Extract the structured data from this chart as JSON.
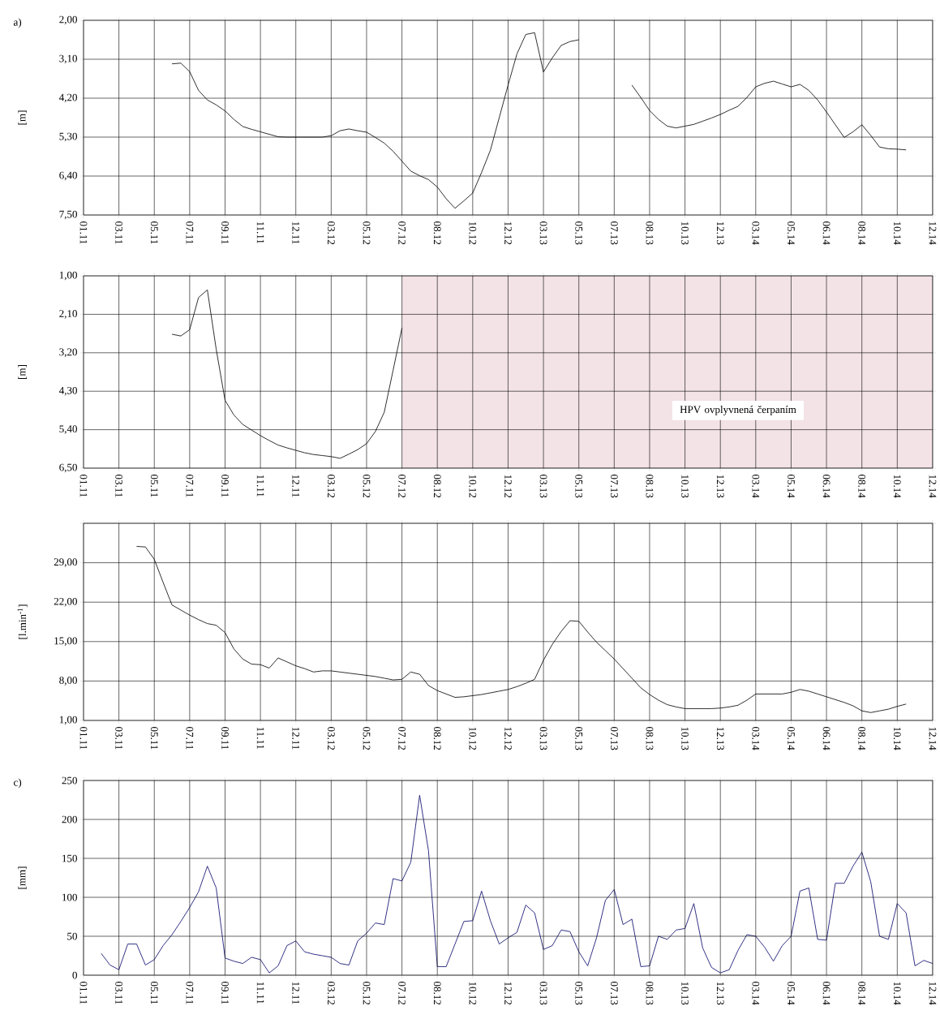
{
  "chart_data": [
    {
      "type": "line",
      "ylabel": "[m]",
      "annotations": [
        "a)"
      ],
      "grid": true,
      "ylim": [
        7.5,
        2.0
      ],
      "yticks": [
        {
          "value": 2.0,
          "label": "2,00"
        },
        {
          "value": 3.1,
          "label": "3,10"
        },
        {
          "value": 4.2,
          "label": "4,20"
        },
        {
          "value": 5.3,
          "label": "5,30"
        },
        {
          "value": 6.4,
          "label": "6,40"
        },
        {
          "value": 7.5,
          "label": "7,50"
        }
      ],
      "categories": [
        "01.11",
        null,
        null,
        null,
        "03.11",
        null,
        null,
        null,
        "05.11",
        null,
        null,
        null,
        "07.11",
        null,
        null,
        null,
        "09.11",
        null,
        null,
        null,
        "11.11",
        null,
        null,
        null,
        "12.11",
        null,
        null,
        null,
        "03.12",
        null,
        null,
        null,
        "05.12",
        null,
        null,
        null,
        "07.12",
        null,
        null,
        null,
        "08.12",
        null,
        null,
        null,
        "10.12",
        null,
        null,
        null,
        "12.12",
        null,
        null,
        null,
        "03.13",
        null,
        null,
        null,
        "05.13",
        null,
        null,
        null,
        "07.13",
        null,
        null,
        null,
        "08.13",
        null,
        null,
        null,
        "10.13",
        null,
        null,
        null,
        "12.13",
        null,
        null,
        null,
        "03.14",
        null,
        null,
        null,
        "05.14",
        null,
        null,
        null,
        "06.14",
        null,
        null,
        null,
        "08.14",
        null,
        null,
        null,
        "10.14",
        null,
        null,
        null,
        "12.14"
      ],
      "series": [
        {
          "color": "#1a1a1a",
          "values": [
            null,
            null,
            null,
            null,
            null,
            null,
            null,
            null,
            null,
            null,
            3.23,
            3.21,
            3.45,
            3.98,
            4.25,
            4.39,
            4.56,
            4.8,
            5.0,
            5.08,
            5.15,
            5.22,
            5.29,
            5.3,
            5.3,
            5.3,
            5.3,
            5.3,
            5.26,
            5.12,
            5.07,
            5.12,
            5.16,
            5.31,
            5.47,
            5.7,
            5.98,
            6.26,
            6.39,
            6.5,
            6.71,
            7.04,
            7.31,
            7.1,
            6.88,
            6.3,
            5.67,
            4.75,
            3.83,
            2.95,
            2.4,
            2.35,
            3.46,
            3.06,
            2.71,
            2.6,
            2.55,
            null,
            null,
            null,
            null,
            null,
            3.83,
            4.18,
            4.55,
            4.8,
            4.99,
            5.04,
            4.99,
            4.94,
            4.85,
            4.76,
            4.66,
            4.54,
            4.43,
            4.18,
            3.88,
            3.78,
            3.72,
            3.8,
            3.88,
            3.81,
            3.98,
            4.25,
            4.59,
            4.95,
            5.31,
            5.15,
            4.95,
            5.25,
            5.58,
            5.63,
            5.64,
            5.66,
            null,
            null,
            null
          ]
        }
      ]
    },
    {
      "type": "line",
      "ylabel": "[m]",
      "grid": true,
      "ylim": [
        6.5,
        1.0
      ],
      "yticks": [
        {
          "value": 1.0,
          "label": "1,00"
        },
        {
          "value": 2.1,
          "label": "2,10"
        },
        {
          "value": 3.2,
          "label": "3,20"
        },
        {
          "value": 4.3,
          "label": "4,30"
        },
        {
          "value": 5.4,
          "label": "5,40"
        },
        {
          "value": 6.5,
          "label": "6,50"
        }
      ],
      "categories": [
        "01.11",
        null,
        null,
        null,
        "03.11",
        null,
        null,
        null,
        "05.11",
        null,
        null,
        null,
        "07.11",
        null,
        null,
        null,
        "09.11",
        null,
        null,
        null,
        "11.11",
        null,
        null,
        null,
        "12.11",
        null,
        null,
        null,
        "03.12",
        null,
        null,
        null,
        "05.12",
        null,
        null,
        null,
        "07.12",
        null,
        null,
        null,
        "08.12",
        null,
        null,
        null,
        "10.12",
        null,
        null,
        null,
        "12.12",
        null,
        null,
        null,
        "03.13",
        null,
        null,
        null,
        "05.13",
        null,
        null,
        null,
        "07.13",
        null,
        null,
        null,
        "08.13",
        null,
        null,
        null,
        "10.13",
        null,
        null,
        null,
        "12.13",
        null,
        null,
        null,
        "03.14",
        null,
        null,
        null,
        "05.14",
        null,
        null,
        null,
        "06.14",
        null,
        null,
        null,
        "08.14",
        null,
        null,
        null,
        "10.14",
        null,
        null,
        null,
        "12.14"
      ],
      "bands": [
        {
          "axis": "x",
          "from": "07.12",
          "to": "12.14",
          "label": "HPV ovplyvnená čerpaním",
          "color": "#f3e3e6"
        }
      ],
      "series": [
        {
          "color": "#1a1a1a",
          "values": [
            null,
            null,
            null,
            null,
            null,
            null,
            null,
            null,
            null,
            null,
            2.67,
            2.72,
            2.54,
            1.62,
            1.4,
            3.1,
            4.56,
            4.98,
            5.25,
            5.41,
            5.57,
            5.71,
            5.84,
            5.92,
            5.99,
            6.06,
            6.11,
            6.14,
            6.17,
            6.22,
            6.1,
            5.97,
            5.8,
            5.45,
            4.9,
            3.7,
            2.49,
            null,
            null,
            null,
            null,
            null,
            null,
            null,
            null,
            null,
            null,
            null,
            null,
            null,
            null,
            null,
            null,
            null,
            null,
            null,
            null,
            null,
            null,
            null,
            null,
            null,
            null,
            null,
            null,
            null,
            null,
            null,
            null,
            null,
            null,
            null,
            null,
            null,
            null,
            null,
            null,
            null,
            null,
            null,
            null,
            null,
            null,
            null,
            null,
            null,
            null,
            null,
            null,
            null,
            null,
            null,
            null,
            null,
            null,
            null,
            null
          ]
        }
      ]
    },
    {
      "type": "line",
      "ylabel": "[l.min$^{-1}$]",
      "grid": true,
      "ylim": [
        1,
        36
      ],
      "yticks": [
        {
          "value": 1,
          "label": "1,00"
        },
        {
          "value": 8,
          "label": "8,00"
        },
        {
          "value": 15,
          "label": "15,00"
        },
        {
          "value": 22,
          "label": "22,00"
        },
        {
          "value": 29,
          "label": "29,00"
        },
        {
          "value": 36,
          "label": null
        }
      ],
      "categories": [
        "01.11",
        null,
        null,
        null,
        "03.11",
        null,
        null,
        null,
        "05.11",
        null,
        null,
        null,
        "07.11",
        null,
        null,
        null,
        "09.11",
        null,
        null,
        null,
        "11.11",
        null,
        null,
        null,
        "12.11",
        null,
        null,
        null,
        "03.12",
        null,
        null,
        null,
        "05.12",
        null,
        null,
        null,
        "07.12",
        null,
        null,
        null,
        "08.12",
        null,
        null,
        null,
        "10.12",
        null,
        null,
        null,
        "12.12",
        null,
        null,
        null,
        "03.13",
        null,
        null,
        null,
        "05.13",
        null,
        null,
        null,
        "07.13",
        null,
        null,
        null,
        "08.13",
        null,
        null,
        null,
        "10.13",
        null,
        null,
        null,
        "12.13",
        null,
        null,
        null,
        "03.14",
        null,
        null,
        null,
        "05.14",
        null,
        null,
        null,
        "06.14",
        null,
        null,
        null,
        "08.14",
        null,
        null,
        null,
        "10.14",
        null,
        null,
        null,
        "12.14"
      ],
      "series": [
        {
          "color": "#1a1a1a",
          "values": [
            null,
            null,
            null,
            null,
            null,
            null,
            31.9,
            31.8,
            29.6,
            25.5,
            21.5,
            20.6,
            19.7,
            18.9,
            18.2,
            17.9,
            16.6,
            13.7,
            11.9,
            11.0,
            10.9,
            10.3,
            12.1,
            11.4,
            10.7,
            10.2,
            9.6,
            9.8,
            9.8,
            9.6,
            9.4,
            9.2,
            9.0,
            8.8,
            8.5,
            8.2,
            8.3,
            9.6,
            9.2,
            7.2,
            6.3,
            5.7,
            5.1,
            5.2,
            5.4,
            5.6,
            5.9,
            6.2,
            6.5,
            7.0,
            7.6,
            8.3,
            11.7,
            14.5,
            16.8,
            18.7,
            18.6,
            16.7,
            14.9,
            13.4,
            11.9,
            10.2,
            8.5,
            6.8,
            5.6,
            4.6,
            3.8,
            3.4,
            3.1,
            3.1,
            3.1,
            3.1,
            3.2,
            3.4,
            3.7,
            4.6,
            5.7,
            5.7,
            5.7,
            5.7,
            6.0,
            6.5,
            6.2,
            5.7,
            5.2,
            4.7,
            4.2,
            3.6,
            2.7,
            2.4,
            2.7,
            3.0,
            3.5,
            3.9,
            null,
            null,
            null
          ]
        }
      ]
    },
    {
      "type": "line",
      "ylabel": "[mm]",
      "annotations": [
        "c)"
      ],
      "grid": true,
      "ylim": [
        0,
        250
      ],
      "yticks": [
        0,
        50,
        100,
        150,
        200,
        250
      ],
      "categories": [
        "01.11",
        null,
        null,
        null,
        "03.11",
        null,
        null,
        null,
        "05.11",
        null,
        null,
        null,
        "07.11",
        null,
        null,
        null,
        "09.11",
        null,
        null,
        null,
        "11.11",
        null,
        null,
        null,
        "12.11",
        null,
        null,
        null,
        "03.12",
        null,
        null,
        null,
        "05.12",
        null,
        null,
        null,
        "07.12",
        null,
        null,
        null,
        "08.12",
        null,
        null,
        null,
        "10.12",
        null,
        null,
        null,
        "12.12",
        null,
        null,
        null,
        "03.13",
        null,
        null,
        null,
        "05.13",
        null,
        null,
        null,
        "07.13",
        null,
        null,
        null,
        "08.13",
        null,
        null,
        null,
        "10.13",
        null,
        null,
        null,
        "12.13",
        null,
        null,
        null,
        "03.14",
        null,
        null,
        null,
        "05.14",
        null,
        null,
        null,
        "06.14",
        null,
        null,
        null,
        "08.14",
        null,
        null,
        null,
        "10.14",
        null,
        null,
        null,
        "12.14"
      ],
      "series": [
        {
          "color": "#1c1c78",
          "values": [
            null,
            null,
            28,
            13,
            7,
            40,
            40,
            13,
            20,
            38,
            52,
            69,
            87,
            107,
            140,
            112,
            22,
            18,
            15,
            23,
            20,
            3,
            12,
            38,
            44,
            30,
            27,
            25,
            23,
            15,
            13,
            44,
            54,
            67,
            65,
            124,
            121,
            145,
            231,
            160,
            11,
            11,
            40,
            69,
            70,
            108,
            70,
            40,
            48,
            55,
            90,
            80,
            33,
            38,
            58,
            56,
            30,
            12,
            48,
            96,
            110,
            65,
            72,
            11,
            12,
            50,
            46,
            58,
            60,
            92,
            35,
            10,
            3,
            7,
            32,
            52,
            50,
            36,
            18,
            38,
            50,
            108,
            112,
            46,
            45,
            118,
            118,
            140,
            158,
            120,
            50,
            46,
            92,
            80,
            12,
            19,
            15
          ]
        }
      ]
    }
  ]
}
